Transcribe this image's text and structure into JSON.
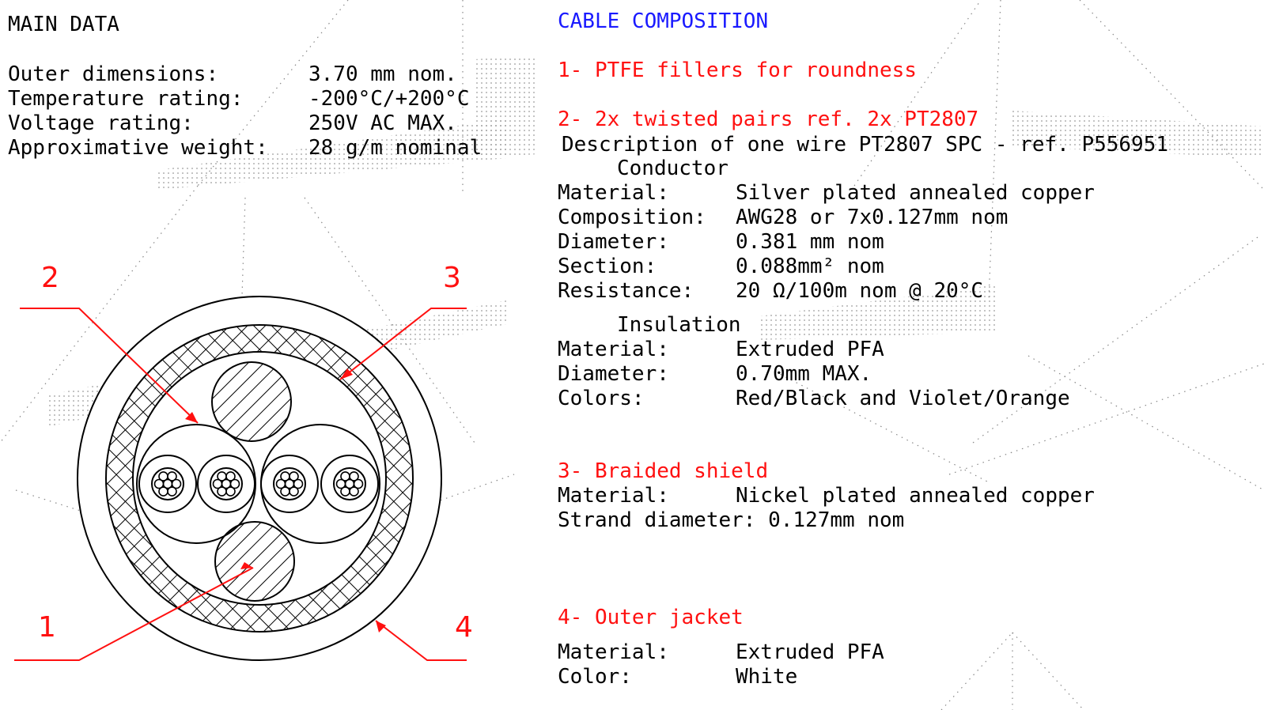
{
  "main": {
    "title": "MAIN DATA",
    "rows": [
      {
        "label": "Outer dimensions:",
        "value": "3.70 mm nom."
      },
      {
        "label": "Temperature rating:",
        "value": "-200°C/+200°C"
      },
      {
        "label": "Voltage rating:",
        "value": "250V AC MAX."
      },
      {
        "label": "Approximative weight:",
        "value": "28 g/m nominal"
      }
    ]
  },
  "composition": {
    "title": "CABLE COMPOSITION",
    "item1": "1- PTFE fillers for roundness",
    "item2": "2- 2x twisted pairs ref. 2x PT2807",
    "wire_desc": "Description of one wire PT2807 SPC - ref. P556951",
    "conductor_heading": "Conductor",
    "conductor": [
      {
        "label": "Material:",
        "value": "Silver plated annealed copper"
      },
      {
        "label": "Composition:",
        "value": "AWG28 or 7x0.127mm nom"
      },
      {
        "label": "Diameter:",
        "value": "0.381 mm nom"
      },
      {
        "label": "Section:",
        "value": "0.088mm² nom"
      },
      {
        "label": "Resistance:",
        "value": "20 Ω/100m nom @ 20°C"
      }
    ],
    "insulation_heading": "Insulation",
    "insulation": [
      {
        "label": "Material:",
        "value": "Extruded PFA"
      },
      {
        "label": "Diameter:",
        "value": "0.70mm MAX."
      },
      {
        "label": "Colors:",
        "value": "Red/Black and Violet/Orange"
      }
    ],
    "item3": "3- Braided shield",
    "shield": [
      {
        "label": "Material:",
        "value": "Nickel plated annealed copper"
      }
    ],
    "shield_strand": "Strand diameter: 0.127mm nom",
    "item4": "4- Outer jacket",
    "jacket": [
      {
        "label": "Material:",
        "value": "Extruded PFA"
      },
      {
        "label": "Color:",
        "value": "White"
      }
    ]
  },
  "callouts": {
    "n1": "1",
    "n2": "2",
    "n3": "3",
    "n4": "4"
  },
  "colors": {
    "label_red": "#ff1010",
    "title_blue": "#1a1aff"
  }
}
